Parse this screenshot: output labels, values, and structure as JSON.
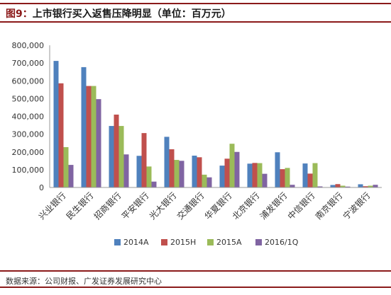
{
  "figure": {
    "number": "图9：",
    "title": "上市银行买入返售压降明显（单位：百万元）",
    "source": "数据来源：公司财报、广发证券发展研究中心"
  },
  "chart_data": {
    "type": "bar",
    "categories": [
      "兴业银行",
      "民生银行",
      "招商银行",
      "平安银行",
      "光大银行",
      "交通银行",
      "华夏银行",
      "北京银行",
      "浦发银行",
      "中信银行",
      "南京银行",
      "宁波银行"
    ],
    "series": [
      {
        "name": "2014A",
        "color": "#4f81bd",
        "values": [
          712000,
          677000,
          346000,
          178000,
          285000,
          179000,
          123000,
          134000,
          198000,
          135000,
          14000,
          18000
        ]
      },
      {
        "name": "2015H",
        "color": "#c0504d",
        "values": [
          586000,
          571000,
          410000,
          306000,
          215000,
          170000,
          162000,
          138000,
          103000,
          78000,
          19000,
          7000
        ]
      },
      {
        "name": "2015A",
        "color": "#9bbb59",
        "values": [
          227000,
          571000,
          346000,
          118000,
          155000,
          72000,
          246000,
          137000,
          110000,
          137000,
          10000,
          10000
        ]
      },
      {
        "name": "2016/1Q",
        "color": "#8064a2",
        "values": [
          127000,
          497000,
          186000,
          33000,
          150000,
          57000,
          200000,
          77000,
          15000,
          6000,
          5000,
          15000
        ]
      }
    ],
    "ylim": [
      0,
      800000
    ],
    "yticks": [
      0,
      100000,
      200000,
      300000,
      400000,
      500000,
      600000,
      700000,
      800000
    ],
    "ytick_labels": [
      "0",
      "100,000",
      "200,000",
      "300,000",
      "400,000",
      "500,000",
      "600,000",
      "700,000",
      "800,000"
    ],
    "xlabel": "",
    "ylabel": "",
    "grid": false,
    "legend": "bottom"
  }
}
